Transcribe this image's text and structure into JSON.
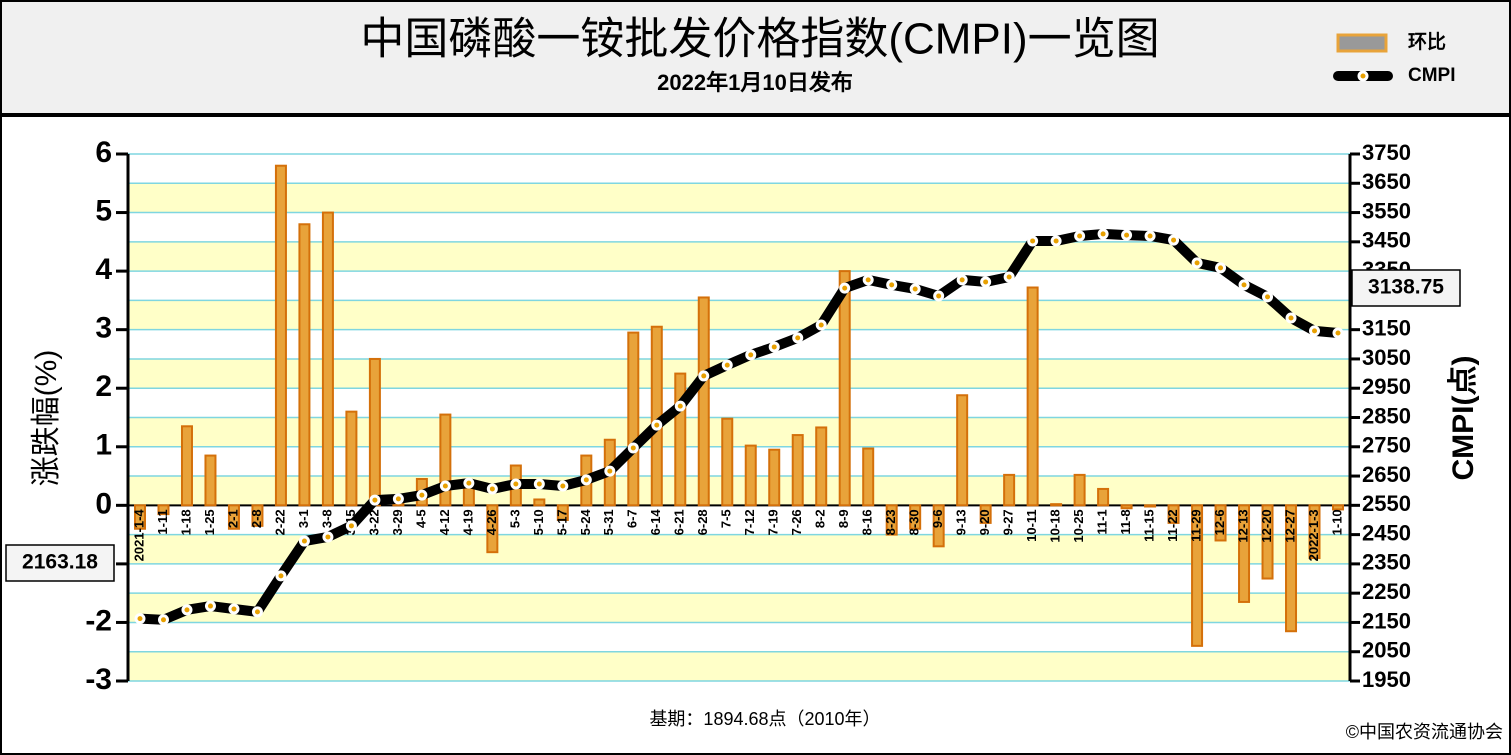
{
  "chart_data": {
    "type": "bar",
    "title": "中国磷酸一铵批发价格指数(CMPI)一览图",
    "subtitle": "2022年1月10日发布",
    "y_label": "涨跌幅(%)",
    "y2_label": "CMPI(点)",
    "footnote": "基期：1894.68点（2010年）",
    "source": "©中国农资流通协会",
    "categories": [
      "2021-1-4",
      "1-11",
      "1-18",
      "1-25",
      "2-1",
      "2-8",
      "2-22",
      "3-1",
      "3-8",
      "3-15",
      "3-22",
      "3-29",
      "4-5",
      "4-12",
      "4-19",
      "4-26",
      "5-3",
      "5-10",
      "5-17",
      "5-24",
      "5-31",
      "6-7",
      "6-14",
      "6-21",
      "6-28",
      "7-5",
      "7-12",
      "7-19",
      "7-26",
      "8-2",
      "8-9",
      "8-16",
      "8-23",
      "8-30",
      "9-6",
      "9-13",
      "9-20",
      "9-27",
      "10-11",
      "10-18",
      "10-25",
      "11-1",
      "11-8",
      "11-15",
      "11-22",
      "11-29",
      "12-6",
      "12-13",
      "12-20",
      "12-27",
      "2022-1-3",
      "1-10"
    ],
    "series": [
      {
        "name": "环比",
        "type": "bar",
        "color": "#e8a33a",
        "values": [
          -0.4,
          -0.15,
          1.35,
          0.85,
          -0.4,
          -0.35,
          5.8,
          4.8,
          5.0,
          1.6,
          2.5,
          0.05,
          0.45,
          1.55,
          0.4,
          -0.8,
          0.68,
          0.1,
          -0.25,
          0.85,
          1.12,
          2.95,
          3.05,
          2.25,
          3.55,
          1.48,
          1.02,
          0.95,
          1.2,
          1.33,
          4.0,
          0.97,
          -0.5,
          -0.4,
          -0.7,
          1.88,
          -0.3,
          0.52,
          3.72,
          0.02,
          0.52,
          0.28,
          -0.05,
          -0.02,
          -0.3,
          -2.4,
          -0.6,
          -1.65,
          -1.25,
          -2.15,
          -0.9,
          -0.07
        ]
      },
      {
        "name": "CMPI",
        "type": "line",
        "axis": "y2",
        "color": "#000000",
        "values": [
          2163.18,
          2159,
          2193,
          2206,
          2196,
          2186,
          2309,
          2428,
          2442,
          2480,
          2568,
          2572,
          2585,
          2616,
          2626,
          2606,
          2623,
          2623,
          2616,
          2637,
          2667,
          2746,
          2824,
          2889,
          2992,
          3029,
          3064,
          3091,
          3122,
          3166,
          3292,
          3320,
          3303,
          3289,
          3265,
          3320,
          3313,
          3330,
          3453,
          3453,
          3470,
          3477,
          3473,
          3470,
          3456,
          3378,
          3361,
          3303,
          3262,
          3190,
          3146,
          3138.75
        ]
      }
    ],
    "ylim": [
      -3,
      6
    ],
    "yticks": [
      -3,
      -2,
      -1,
      0,
      1,
      2,
      3,
      4,
      5,
      6
    ],
    "y2lim": [
      1950,
      3750
    ],
    "y2ticks": [
      1950,
      2050,
      2150,
      2250,
      2350,
      2450,
      2550,
      2650,
      2750,
      2850,
      2950,
      3050,
      3150,
      3250,
      3350,
      3450,
      3550,
      3650,
      3750
    ],
    "grid": true
  }
}
